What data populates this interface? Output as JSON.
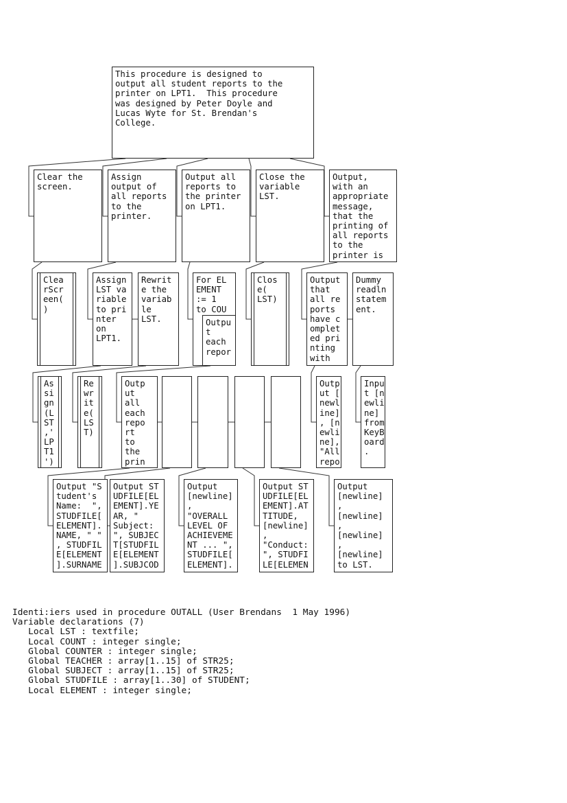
{
  "diagram": {
    "root": "This procedure is designed to\noutput all student reports to the\nprinter on LPT1.  This procedure\nwas designed by Peter Doyle and\nLucas Wyte for St. Brendan's\nCollege.",
    "a1": "Clear the\nscreen.",
    "a2": "Assign\noutput of\nall reports\nto the\nprinter.",
    "a3": "Output all\nreports to\nthe printer\non LPT1.",
    "a4": "Close the\nvariable\nLST.",
    "a5": "Output,\nwith an\nappropriate\nmessage,\nthat the\nprinting of\nall reports\nto the\nprinter is",
    "b1": "Clea\nrScr\neen(\n)",
    "b2": "Assign\nLST va\nriable\nto pri\nnter\non\nLPT1.",
    "b3": "Rewrit\ne the\nvariab\nle\nLST.",
    "b4": "For EL\nEMENT\n:= 1\nto COU",
    "b4i": "Outpu\nt\neach\nrepor",
    "b5": "Clos\ne(\nLST)",
    "b6": "Output\nthat\nall re\nports\nhave c\nomplet\ned pri\nnting\nwith",
    "b7": "Dummy\nreadln\nstatem\nent.",
    "c1": "As\nsi\ngn\n(L\nST\n,'\nLP\nT1\n')",
    "c2": "Re\nwr\nit\ne(\nLS\nT)",
    "c3": "Outp\nut\nall\neach\nrepo\nrt\nto\nthe\nprin",
    "c4": "",
    "c5": "",
    "c6": "",
    "c7": "",
    "c8": "Outp\nut [\nnewl\nine]\n, [n\newli\nne],\n\"All\nrepo",
    "c9": "Inpu\nt [n\newli\nne]\nfrom\nKeyB\noard\n.",
    "d1": "Output \"S\ntudent's\nName:  \",\nSTUDFILE[\nELEMENT].\nNAME, \" \"\n, STUDFIL\nE[ELEMENT\n].SURNAME",
    "d2": "Output ST\nUDFILE[EL\nEMENT].YE\nAR, \"\nSubject:\n\", SUBJEC\nT[STUDFIL\nE[ELEMENT\n].SUBJCOD",
    "d3": "Output\n[newline]\n,\n\"OVERALL\nLEVEL OF\nACHIEVEME\nNT ... \",\nSTUDFILE[\nELEMENT].",
    "d4": "Output ST\nUDFILE[EL\nEMENT].AT\nTITUDE,\n[newline]\n,\n\"Conduct:\n\", STUDFI\nLE[ELEMEN",
    "d5": "Output\n[newline]\n,\n[newline]\n,\n[newline]\n,\n[newline]\nto LST."
  },
  "identifiers": {
    "text": "Identi:iers used in procedure OUTALL (User Brendans  1 May 1996)\nVariable declarations (7)\n   Local LST : textfile;\n   Local COUNT : integer single;\n   Global COUNTER : integer single;\n   Global TEACHER : array[1..15] of STR25;\n   Global SUBJECT : array[1..15] of STR25;\n   Global STUDFILE : array[1..30] of STUDENT;\n   Local ELEMENT : integer single;"
  }
}
